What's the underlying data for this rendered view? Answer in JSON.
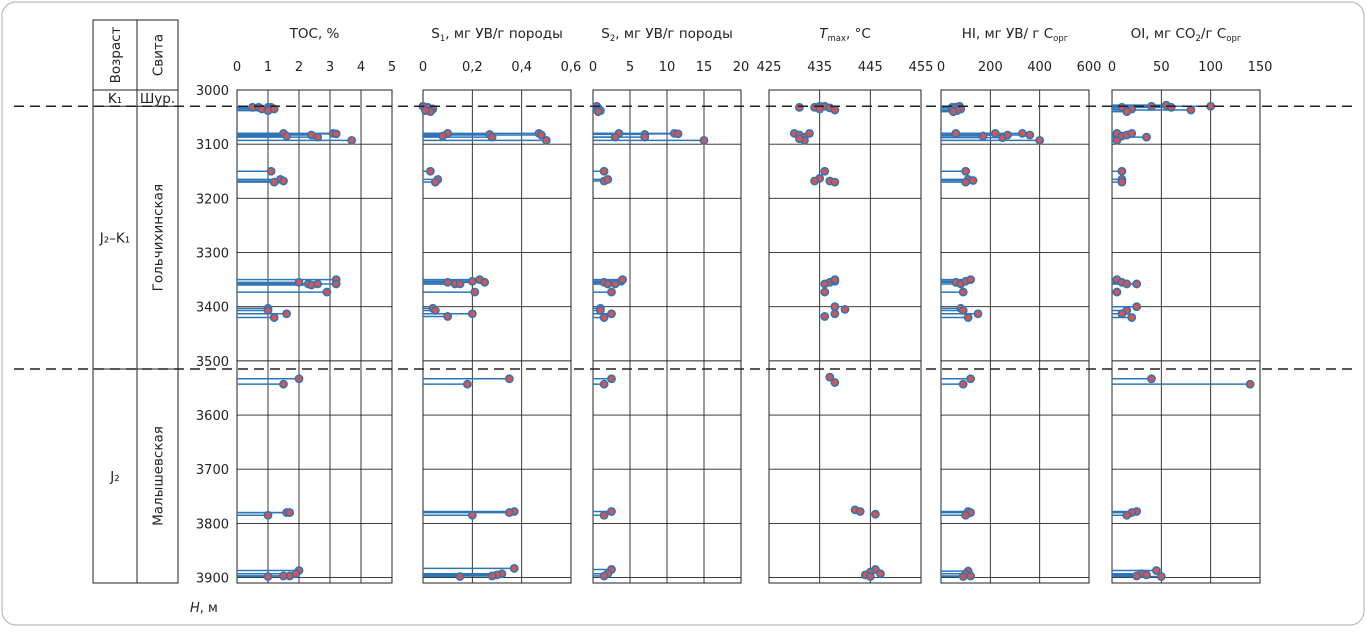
{
  "strat": {
    "headers": {
      "age": "Возраст",
      "suite": "Свита"
    },
    "units": [
      {
        "age": "K₁",
        "suite": "Шур.",
        "top": 3000,
        "bottom": 3030
      },
      {
        "age": "J₂–K₁",
        "suite": "Гольчихинская",
        "top": 3030,
        "bottom": 3515
      },
      {
        "age": "J₂",
        "suite": "Малышевская",
        "top": 3515,
        "bottom": 3910
      }
    ],
    "boundaries": [
      3030,
      3515
    ]
  },
  "depth_axis": {
    "label_main": "H",
    "label_unit": ", м",
    "min": 3000,
    "max": 3910,
    "ticks": [
      "3000",
      "3100",
      "3200",
      "3300",
      "3400",
      "3500",
      "3600",
      "3700",
      "3800",
      "3900"
    ]
  },
  "colors": {
    "stem": "#2e75b6",
    "marker_fill": "#d9534f",
    "marker_edge": "#2e75b6",
    "grid": "#222222",
    "boundary": "#222222"
  },
  "chart_data": [
    {
      "type": "scatter",
      "title": {
        "main": "TOC, %",
        "sub": "",
        "tail": ""
      },
      "xlim": [
        0,
        5
      ],
      "xticks": [
        "0",
        "1",
        "2",
        "3",
        "4",
        "5"
      ],
      "stems": true,
      "points": [
        [
          0.5,
          3032
        ],
        [
          0.7,
          3032
        ],
        [
          1.0,
          3032
        ],
        [
          1.1,
          3032
        ],
        [
          0.8,
          3035
        ],
        [
          1.0,
          3038
        ],
        [
          1.2,
          3035
        ],
        [
          1.5,
          3080
        ],
        [
          1.6,
          3085
        ],
        [
          2.4,
          3083
        ],
        [
          2.6,
          3087
        ],
        [
          3.1,
          3080
        ],
        [
          3.2,
          3081
        ],
        [
          3.7,
          3093
        ],
        [
          1.1,
          3150
        ],
        [
          1.4,
          3165
        ],
        [
          1.5,
          3168
        ],
        [
          1.2,
          3170
        ],
        [
          2.0,
          3355
        ],
        [
          2.3,
          3358
        ],
        [
          2.4,
          3360
        ],
        [
          2.6,
          3358
        ],
        [
          3.2,
          3350
        ],
        [
          3.2,
          3358
        ],
        [
          2.9,
          3373
        ],
        [
          1.0,
          3403
        ],
        [
          1.0,
          3407
        ],
        [
          1.6,
          3413
        ],
        [
          1.2,
          3420
        ],
        [
          2.0,
          3533
        ],
        [
          1.5,
          3543
        ],
        [
          1.6,
          3780
        ],
        [
          1.7,
          3780
        ],
        [
          1.0,
          3785
        ],
        [
          2.0,
          3887
        ],
        [
          1.9,
          3893
        ],
        [
          1.7,
          3897
        ],
        [
          1.5,
          3897
        ],
        [
          1.0,
          3898
        ]
      ]
    },
    {
      "type": "scatter",
      "title": {
        "main": "S",
        "sub": "1",
        "tail": ", мг УВ/г породы"
      },
      "xlim": [
        0,
        0.6
      ],
      "xticks": [
        "0",
        "0,2",
        "0,4",
        "0,6"
      ],
      "stems": true,
      "points": [
        [
          0.0,
          3030
        ],
        [
          0.02,
          3032
        ],
        [
          0.04,
          3035
        ],
        [
          0.03,
          3040
        ],
        [
          0.01,
          3038
        ],
        [
          0.1,
          3080
        ],
        [
          0.08,
          3085
        ],
        [
          0.27,
          3082
        ],
        [
          0.28,
          3087
        ],
        [
          0.47,
          3080
        ],
        [
          0.48,
          3083
        ],
        [
          0.5,
          3093
        ],
        [
          0.03,
          3150
        ],
        [
          0.06,
          3165
        ],
        [
          0.05,
          3170
        ],
        [
          0.1,
          3355
        ],
        [
          0.13,
          3358
        ],
        [
          0.15,
          3358
        ],
        [
          0.2,
          3353
        ],
        [
          0.23,
          3350
        ],
        [
          0.25,
          3355
        ],
        [
          0.21,
          3373
        ],
        [
          0.04,
          3403
        ],
        [
          0.05,
          3407
        ],
        [
          0.1,
          3418
        ],
        [
          0.2,
          3413
        ],
        [
          0.35,
          3533
        ],
        [
          0.18,
          3543
        ],
        [
          0.37,
          3778
        ],
        [
          0.35,
          3780
        ],
        [
          0.2,
          3785
        ],
        [
          0.37,
          3883
        ],
        [
          0.32,
          3893
        ],
        [
          0.3,
          3895
        ],
        [
          0.28,
          3897
        ],
        [
          0.15,
          3898
        ]
      ]
    },
    {
      "type": "scatter",
      "title": {
        "main": "S",
        "sub": "2",
        "tail": ", мг УВ/г породы"
      },
      "xlim": [
        0,
        20
      ],
      "xticks": [
        "0",
        "5",
        "10",
        "15",
        "20"
      ],
      "stems": true,
      "points": [
        [
          0.5,
          3030
        ],
        [
          0.8,
          3035
        ],
        [
          1.0,
          3038
        ],
        [
          0.7,
          3040
        ],
        [
          3.5,
          3080
        ],
        [
          3.0,
          3087
        ],
        [
          7.0,
          3082
        ],
        [
          7.0,
          3087
        ],
        [
          11.0,
          3080
        ],
        [
          11.5,
          3081
        ],
        [
          15.0,
          3093
        ],
        [
          1.5,
          3150
        ],
        [
          1.5,
          3168
        ],
        [
          2.0,
          3165
        ],
        [
          1.5,
          3355
        ],
        [
          2.0,
          3358
        ],
        [
          3.0,
          3358
        ],
        [
          3.8,
          3353
        ],
        [
          4.0,
          3350
        ],
        [
          2.5,
          3373
        ],
        [
          1.0,
          3403
        ],
        [
          1.0,
          3407
        ],
        [
          2.5,
          3413
        ],
        [
          1.5,
          3420
        ],
        [
          2.5,
          3533
        ],
        [
          1.5,
          3543
        ],
        [
          2.5,
          3778
        ],
        [
          1.5,
          3785
        ],
        [
          2.5,
          3885
        ],
        [
          2.0,
          3893
        ],
        [
          1.5,
          3897
        ]
      ]
    },
    {
      "type": "scatter",
      "title": {
        "main": "T",
        "sub": "max",
        "tail": ", °C",
        "italic_main": true
      },
      "xlim": [
        425,
        455
      ],
      "xticks": [
        "425",
        "435",
        "445",
        "455"
      ],
      "stems": false,
      "points": [
        [
          431,
          3032
        ],
        [
          434,
          3032
        ],
        [
          435,
          3030
        ],
        [
          436,
          3030
        ],
        [
          437,
          3033
        ],
        [
          438,
          3037
        ],
        [
          435,
          3035
        ],
        [
          430,
          3080
        ],
        [
          431,
          3083
        ],
        [
          432,
          3087
        ],
        [
          433,
          3080
        ],
        [
          432,
          3093
        ],
        [
          431,
          3090
        ],
        [
          436,
          3150
        ],
        [
          435,
          3163
        ],
        [
          437,
          3168
        ],
        [
          438,
          3170
        ],
        [
          434,
          3168
        ],
        [
          437,
          3355
        ],
        [
          438,
          3353
        ],
        [
          438,
          3350
        ],
        [
          436,
          3358
        ],
        [
          436,
          3373
        ],
        [
          438,
          3400
        ],
        [
          440,
          3405
        ],
        [
          438,
          3413
        ],
        [
          436,
          3418
        ],
        [
          437,
          3530
        ],
        [
          438,
          3540
        ],
        [
          442,
          3775
        ],
        [
          443,
          3778
        ],
        [
          446,
          3783
        ],
        [
          446,
          3885
        ],
        [
          445,
          3890
        ],
        [
          447,
          3893
        ],
        [
          444,
          3895
        ],
        [
          445,
          3898
        ]
      ]
    },
    {
      "type": "scatter",
      "title": {
        "main": "HI, мг УВ/ г C",
        "sub": "орг",
        "tail": ""
      },
      "xlim": [
        0,
        600
      ],
      "xticks": [
        "0",
        "200",
        "400",
        "600"
      ],
      "stems": true,
      "points": [
        [
          45,
          3032
        ],
        [
          60,
          3032
        ],
        [
          75,
          3030
        ],
        [
          80,
          3035
        ],
        [
          65,
          3038
        ],
        [
          50,
          3040
        ],
        [
          60,
          3080
        ],
        [
          170,
          3085
        ],
        [
          220,
          3080
        ],
        [
          250,
          3088
        ],
        [
          270,
          3083
        ],
        [
          330,
          3080
        ],
        [
          360,
          3083
        ],
        [
          400,
          3093
        ],
        [
          100,
          3150
        ],
        [
          110,
          3165
        ],
        [
          130,
          3167
        ],
        [
          100,
          3170
        ],
        [
          60,
          3355
        ],
        [
          80,
          3358
        ],
        [
          100,
          3353
        ],
        [
          120,
          3350
        ],
        [
          90,
          3373
        ],
        [
          80,
          3403
        ],
        [
          90,
          3407
        ],
        [
          150,
          3413
        ],
        [
          110,
          3420
        ],
        [
          120,
          3533
        ],
        [
          90,
          3543
        ],
        [
          110,
          3778
        ],
        [
          120,
          3780
        ],
        [
          100,
          3785
        ],
        [
          110,
          3888
        ],
        [
          100,
          3893
        ],
        [
          120,
          3897
        ],
        [
          90,
          3898
        ]
      ]
    },
    {
      "type": "scatter",
      "title": {
        "main": "OI, мг CO",
        "sub": "2",
        "tail": "/г C",
        "sub2": "орг"
      },
      "xlim": [
        0,
        150
      ],
      "xticks": [
        "0",
        "50",
        "100",
        "150"
      ],
      "stems": true,
      "points": [
        [
          10,
          3032
        ],
        [
          20,
          3035
        ],
        [
          40,
          3030
        ],
        [
          55,
          3028
        ],
        [
          60,
          3032
        ],
        [
          80,
          3037
        ],
        [
          100,
          3030
        ],
        [
          15,
          3040
        ],
        [
          5,
          3080
        ],
        [
          10,
          3085
        ],
        [
          15,
          3083
        ],
        [
          20,
          3080
        ],
        [
          35,
          3087
        ],
        [
          5,
          3093
        ],
        [
          10,
          3150
        ],
        [
          10,
          3165
        ],
        [
          10,
          3170
        ],
        [
          5,
          3350
        ],
        [
          10,
          3355
        ],
        [
          15,
          3358
        ],
        [
          25,
          3358
        ],
        [
          5,
          3373
        ],
        [
          25,
          3400
        ],
        [
          15,
          3407
        ],
        [
          10,
          3413
        ],
        [
          20,
          3420
        ],
        [
          40,
          3533
        ],
        [
          140,
          3543
        ],
        [
          25,
          3778
        ],
        [
          20,
          3780
        ],
        [
          15,
          3785
        ],
        [
          45,
          3887
        ],
        [
          30,
          3893
        ],
        [
          35,
          3895
        ],
        [
          50,
          3898
        ],
        [
          25,
          3897
        ]
      ]
    }
  ]
}
